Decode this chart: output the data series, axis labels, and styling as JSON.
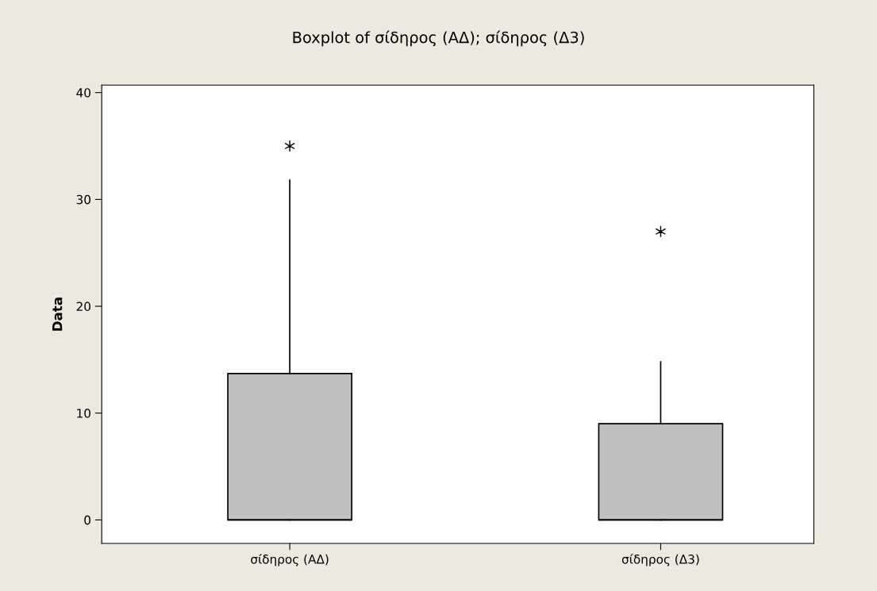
{
  "chart_data": {
    "type": "box",
    "title": "Boxplot of σίδηρος (ΑΔ); σίδηρος (Δ3)",
    "ylabel": "Data",
    "categories": [
      "σίδηρος (ΑΔ)",
      "σίδηρος (Δ3)"
    ],
    "boxes": [
      {
        "low": 0,
        "q1": 0,
        "median": 0,
        "q3": 13.7,
        "high": 31.8,
        "outliers": [
          35
        ]
      },
      {
        "low": 0,
        "q1": 0,
        "median": 0,
        "q3": 9,
        "high": 14.8,
        "outliers": [
          27
        ]
      }
    ],
    "color": "#c0c0c0",
    "ylim": [
      -2.2,
      40.7
    ],
    "yticks": [
      0,
      10,
      20,
      30,
      40
    ],
    "grid": false,
    "marker": "cross"
  }
}
